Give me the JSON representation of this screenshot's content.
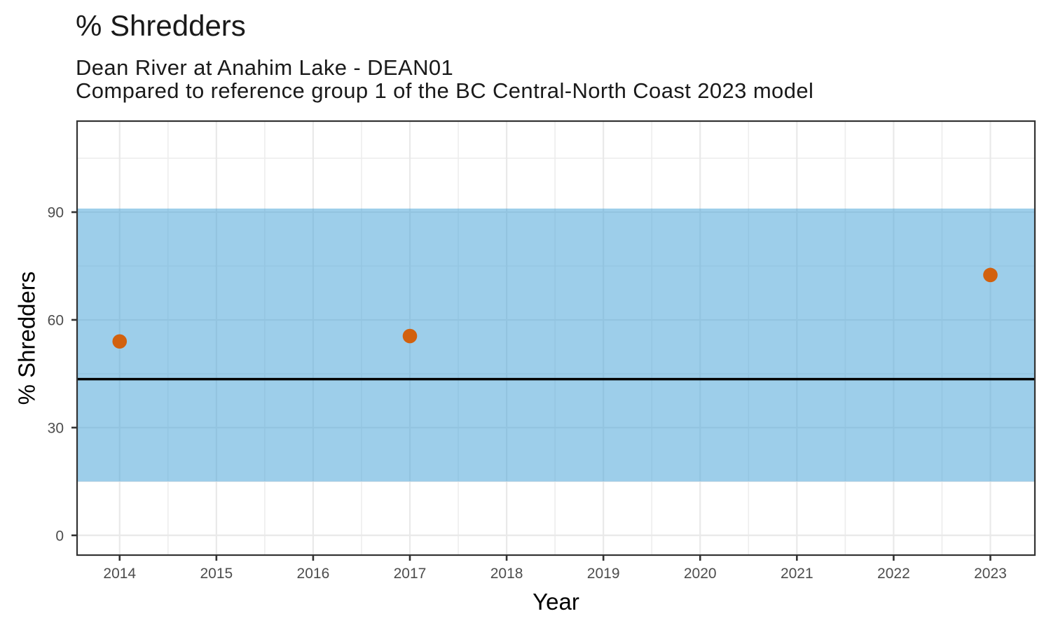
{
  "chart_data": {
    "type": "scatter",
    "title": "% Shredders",
    "subtitle_lines": [
      "Dean River at Anahim Lake - DEAN01",
      "Compared to reference group 1 of the BC Central-North Coast 2023 model"
    ],
    "xlabel": "Year",
    "ylabel": "% Shredders",
    "x_ticks": [
      2014,
      2015,
      2016,
      2017,
      2018,
      2019,
      2020,
      2021,
      2022,
      2023
    ],
    "y_ticks": [
      0,
      30,
      60,
      90
    ],
    "xlim": [
      2013.56,
      2023.46
    ],
    "ylim": [
      -5.5,
      115.35
    ],
    "grid": true,
    "legend": "none",
    "reference_band": {
      "low": 15,
      "high": 91
    },
    "reference_line": {
      "value": 43.5
    },
    "series": [
      {
        "name": "% Shredders",
        "points": [
          {
            "x": 2014,
            "y": 54
          },
          {
            "x": 2017,
            "y": 55.5
          },
          {
            "x": 2023,
            "y": 72.5
          }
        ]
      }
    ]
  },
  "colors": {
    "background": "#FFFFFF",
    "panel_background": "#FFFFFF",
    "band_fill": "#4DA6D9",
    "band_opacity": 0.55,
    "point_fill": "#D2610E",
    "reference_line": "#000000",
    "grid_major": "#E9E9E9",
    "grid_minor": "#EDEDED",
    "panel_border": "#333333",
    "tick_mark": "#333333",
    "tick_label": "#4D4D4D",
    "axis_title": "#000000",
    "title_color": "#1A1A1A"
  }
}
